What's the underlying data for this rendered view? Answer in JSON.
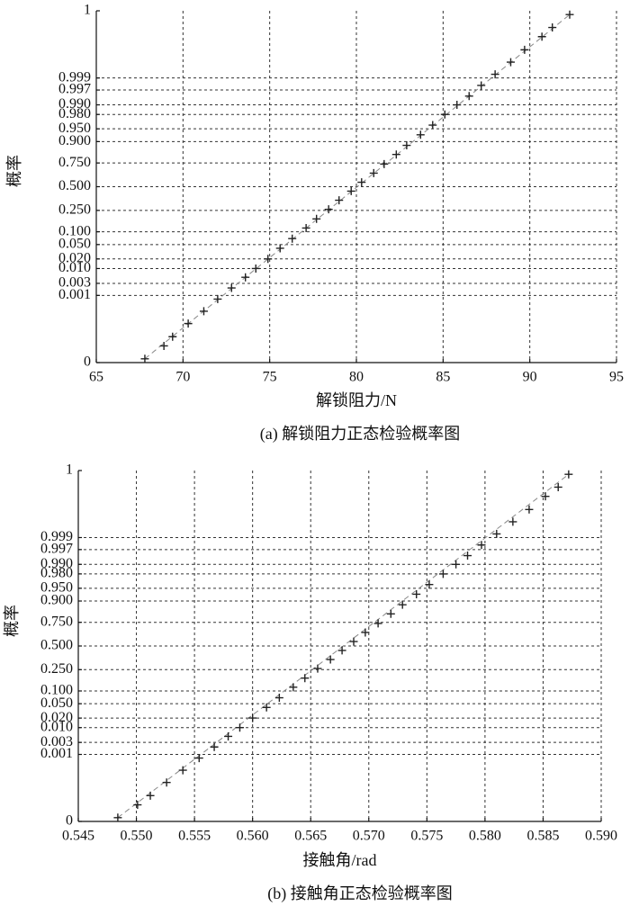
{
  "chart_data": [
    {
      "type": "scatter",
      "yscale": "normal-probability",
      "grid": true,
      "marker": "+",
      "color": "#222222",
      "xlabel": "解锁阻力/N",
      "ylabel": "概率",
      "caption": "(a) 解锁阻力正态检验概率图",
      "xlim": [
        65,
        95
      ],
      "xticks": [
        65,
        70,
        75,
        80,
        85,
        90,
        95
      ],
      "ylim": [
        0,
        1
      ],
      "yticks": [
        0,
        0.001,
        0.003,
        {
          "value": 0.01,
          "label": "0.010"
        },
        {
          "value": 0.02,
          "label": "0.020"
        },
        {
          "value": 0.05,
          "label": "0.050"
        },
        {
          "value": 0.1,
          "label": "0.100"
        },
        {
          "value": 0.25,
          "label": "0.250"
        },
        {
          "value": 0.5,
          "label": "0.500"
        },
        {
          "value": 0.75,
          "label": "0.750"
        },
        {
          "value": 0.9,
          "label": "0.900"
        },
        {
          "value": 0.95,
          "label": "0.950"
        },
        {
          "value": 0.98,
          "label": "0.980"
        },
        {
          "value": 0.99,
          "label": "0.990"
        },
        0.997,
        0.999,
        1
      ],
      "x": [
        67.8,
        68.9,
        69.4,
        70.3,
        71.2,
        72.0,
        72.8,
        73.6,
        74.2,
        74.9,
        75.6,
        76.3,
        77.1,
        77.7,
        78.4,
        79.0,
        79.7,
        80.3,
        81.0,
        81.6,
        82.3,
        82.9,
        83.7,
        84.4,
        85.1,
        85.8,
        86.5,
        87.2,
        88.0,
        88.9,
        89.7,
        90.7,
        91.3,
        92.3
      ],
      "values": [
        5e-07,
        3e-06,
        1e-05,
        5e-05,
        0.0002,
        0.0007,
        0.002,
        0.005,
        0.01,
        0.02,
        0.04,
        0.07,
        0.12,
        0.18,
        0.26,
        0.35,
        0.45,
        0.55,
        0.65,
        0.74,
        0.82,
        0.88,
        0.93,
        0.96,
        0.98,
        0.99,
        0.995,
        0.998,
        0.9993,
        0.9998,
        0.99995,
        0.99999,
        0.999997,
        0.9999995
      ]
    },
    {
      "type": "scatter",
      "yscale": "normal-probability",
      "grid": true,
      "marker": "+",
      "color": "#222222",
      "xlabel": "接触角/rad",
      "ylabel": "概率",
      "caption": "(b) 接触角正态检验概率图",
      "xlim": [
        0.545,
        0.59
      ],
      "xticks": [
        0.545,
        {
          "value": 0.55,
          "label": "0.550"
        },
        0.555,
        {
          "value": 0.56,
          "label": "0.560"
        },
        0.565,
        {
          "value": 0.57,
          "label": "0.570"
        },
        0.575,
        {
          "value": 0.58,
          "label": "0.580"
        },
        0.585,
        {
          "value": 0.59,
          "label": "0.590"
        }
      ],
      "ylim": [
        0,
        1
      ],
      "yticks": [
        0,
        0.001,
        0.003,
        {
          "value": 0.01,
          "label": "0.010"
        },
        {
          "value": 0.02,
          "label": "0.020"
        },
        {
          "value": 0.05,
          "label": "0.050"
        },
        {
          "value": 0.1,
          "label": "0.100"
        },
        {
          "value": 0.25,
          "label": "0.250"
        },
        {
          "value": 0.5,
          "label": "0.500"
        },
        {
          "value": 0.75,
          "label": "0.750"
        },
        {
          "value": 0.9,
          "label": "0.900"
        },
        {
          "value": 0.95,
          "label": "0.950"
        },
        {
          "value": 0.98,
          "label": "0.980"
        },
        {
          "value": 0.99,
          "label": "0.990"
        },
        0.997,
        0.999,
        1
      ],
      "x": [
        0.5484,
        0.5501,
        0.5512,
        0.5526,
        0.554,
        0.5554,
        0.5567,
        0.5579,
        0.5589,
        0.56,
        0.5612,
        0.5623,
        0.5635,
        0.5645,
        0.5656,
        0.5667,
        0.5677,
        0.5687,
        0.5697,
        0.5708,
        0.5719,
        0.5729,
        0.5741,
        0.5752,
        0.5764,
        0.5775,
        0.5785,
        0.5797,
        0.581,
        0.5824,
        0.5838,
        0.5852,
        0.5863,
        0.5872
      ],
      "values": [
        5e-07,
        3e-06,
        1e-05,
        5e-05,
        0.0002,
        0.0007,
        0.002,
        0.005,
        0.01,
        0.02,
        0.04,
        0.07,
        0.12,
        0.18,
        0.26,
        0.35,
        0.45,
        0.55,
        0.65,
        0.74,
        0.82,
        0.88,
        0.93,
        0.96,
        0.98,
        0.99,
        0.995,
        0.998,
        0.9993,
        0.9998,
        0.99995,
        0.99999,
        0.999997,
        0.9999995
      ]
    }
  ]
}
